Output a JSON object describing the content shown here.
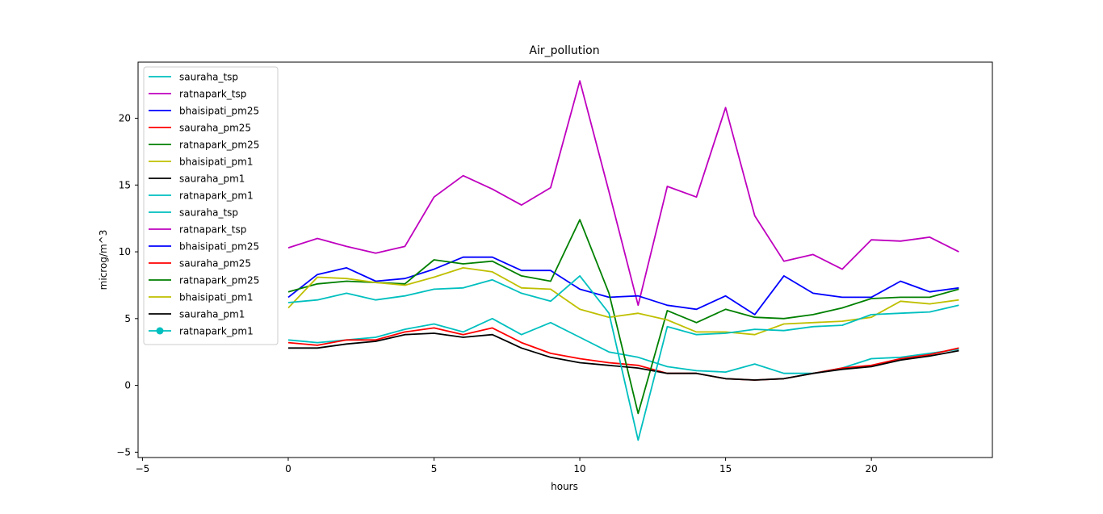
{
  "chart_data": {
    "type": "line",
    "title": "Air_pollution",
    "xlabel": "hours",
    "ylabel": "microg/m^3",
    "xlim": [
      -5.15,
      24.15
    ],
    "ylim": [
      -5.4,
      24.2
    ],
    "xticks": [
      -5,
      0,
      5,
      10,
      15,
      20
    ],
    "yticks": [
      -5,
      0,
      5,
      10,
      15,
      20
    ],
    "grid": false,
    "legend_position": "top-left",
    "x": [
      0,
      1,
      2,
      3,
      4,
      5,
      6,
      7,
      8,
      9,
      10,
      11,
      12,
      13,
      14,
      15,
      16,
      17,
      18,
      19,
      20,
      21,
      22,
      23
    ],
    "series": [
      {
        "name": "sauraha_tsp",
        "color": "#00bfbf",
        "marker": "none",
        "values": [
          3.4,
          3.2,
          3.4,
          3.6,
          4.2,
          4.6,
          4.0,
          5.0,
          3.8,
          4.7,
          3.6,
          2.5,
          2.1,
          1.4,
          1.1,
          1.0,
          1.6,
          0.9,
          0.9,
          1.3,
          2.0,
          2.1,
          2.4,
          2.7
        ]
      },
      {
        "name": "ratnapark_tsp",
        "color": "#bf00bf",
        "marker": "none",
        "values": [
          10.3,
          11.0,
          10.4,
          9.9,
          10.4,
          14.1,
          15.7,
          14.7,
          13.5,
          14.8,
          22.8,
          14.5,
          6.0,
          14.9,
          14.1,
          20.8,
          12.7,
          9.3,
          9.8,
          8.7,
          10.9,
          10.8,
          11.1,
          10.0
        ]
      },
      {
        "name": "bhaisipati_pm25",
        "color": "#0000ff",
        "marker": "none",
        "values": [
          6.6,
          8.3,
          8.8,
          7.8,
          8.0,
          8.7,
          9.6,
          9.6,
          8.6,
          8.6,
          7.2,
          6.6,
          6.7,
          6.0,
          5.7,
          6.7,
          5.3,
          8.2,
          6.9,
          6.6,
          6.6,
          7.8,
          7.0,
          7.3
        ]
      },
      {
        "name": "sauraha_pm25",
        "color": "#ff0000",
        "marker": "none",
        "values": [
          3.2,
          3.0,
          3.4,
          3.4,
          4.0,
          4.3,
          3.8,
          4.3,
          3.2,
          2.4,
          2.0,
          1.7,
          1.5,
          0.9,
          0.9,
          0.5,
          0.4,
          0.5,
          0.9,
          1.3,
          1.5,
          2.0,
          2.3,
          2.8
        ]
      },
      {
        "name": "ratnapark_pm25",
        "color": "#008000",
        "marker": "none",
        "values": [
          7.0,
          7.6,
          7.8,
          7.7,
          7.6,
          9.4,
          9.1,
          9.3,
          8.2,
          7.8,
          12.4,
          6.9,
          -2.1,
          5.6,
          4.7,
          5.7,
          5.1,
          5.0,
          5.3,
          5.8,
          6.5,
          6.6,
          6.6,
          7.2
        ]
      },
      {
        "name": "bhaisipati_pm1",
        "color": "#bfbf00",
        "marker": "none",
        "values": [
          5.8,
          8.1,
          8.0,
          7.7,
          7.5,
          8.1,
          8.8,
          8.5,
          7.3,
          7.2,
          5.7,
          5.1,
          5.4,
          4.9,
          4.0,
          4.0,
          3.8,
          4.6,
          4.7,
          4.8,
          5.1,
          6.3,
          6.1,
          6.4
        ]
      },
      {
        "name": "sauraha_pm1",
        "color": "#000000",
        "marker": "none",
        "values": [
          2.8,
          2.8,
          3.1,
          3.3,
          3.8,
          3.9,
          3.6,
          3.8,
          2.8,
          2.1,
          1.7,
          1.5,
          1.3,
          0.9,
          0.9,
          0.5,
          0.4,
          0.5,
          0.9,
          1.2,
          1.4,
          1.9,
          2.2,
          2.6
        ]
      },
      {
        "name": "ratnapark_pm1",
        "color": "#00bfbf",
        "marker": "none",
        "values": [
          6.2,
          6.4,
          6.9,
          6.4,
          6.7,
          7.2,
          7.3,
          7.9,
          6.9,
          6.3,
          8.2,
          5.4,
          -4.1,
          4.4,
          3.8,
          3.9,
          4.2,
          4.1,
          4.4,
          4.5,
          5.3,
          5.4,
          5.5,
          6.0
        ]
      }
    ],
    "legend": [
      {
        "name": "sauraha_tsp",
        "color": "#00bfbf",
        "marker": "none"
      },
      {
        "name": "ratnapark_tsp",
        "color": "#bf00bf",
        "marker": "none"
      },
      {
        "name": "bhaisipati_pm25",
        "color": "#0000ff",
        "marker": "none"
      },
      {
        "name": "sauraha_pm25",
        "color": "#ff0000",
        "marker": "none"
      },
      {
        "name": "ratnapark_pm25",
        "color": "#008000",
        "marker": "none"
      },
      {
        "name": "bhaisipati_pm1",
        "color": "#bfbf00",
        "marker": "none"
      },
      {
        "name": "sauraha_pm1",
        "color": "#000000",
        "marker": "none"
      },
      {
        "name": "ratnapark_pm1",
        "color": "#00bfbf",
        "marker": "none"
      },
      {
        "name": "sauraha_tsp",
        "color": "#00bfbf",
        "marker": "none"
      },
      {
        "name": "ratnapark_tsp",
        "color": "#bf00bf",
        "marker": "none"
      },
      {
        "name": "bhaisipati_pm25",
        "color": "#0000ff",
        "marker": "none"
      },
      {
        "name": "sauraha_pm25",
        "color": "#ff0000",
        "marker": "none"
      },
      {
        "name": "ratnapark_pm25",
        "color": "#008000",
        "marker": "none"
      },
      {
        "name": "bhaisipati_pm1",
        "color": "#bfbf00",
        "marker": "none"
      },
      {
        "name": "sauraha_pm1",
        "color": "#000000",
        "marker": "none"
      },
      {
        "name": "ratnapark_pm1",
        "color": "#00bfbf",
        "marker": "circle"
      }
    ]
  }
}
